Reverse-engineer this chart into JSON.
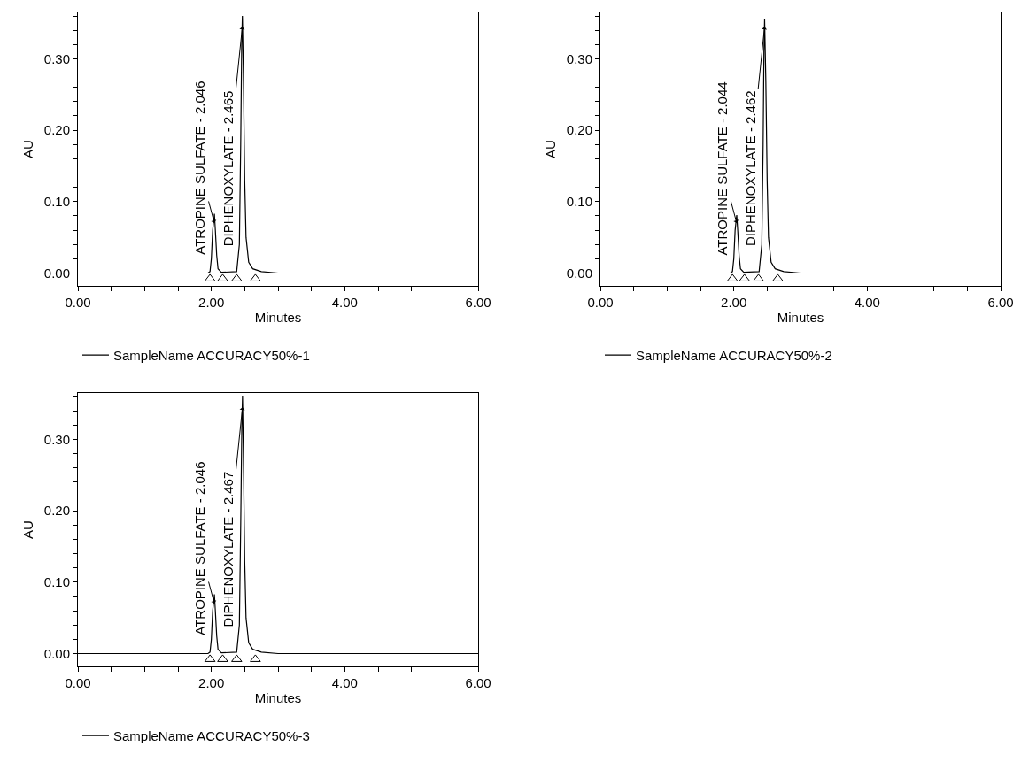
{
  "chart_data": [
    {
      "type": "line",
      "xlabel": "Minutes",
      "ylabel": "AU",
      "legend": "bottom",
      "grid": false,
      "line_style": "solid",
      "xlim": [
        0,
        6
      ],
      "ylim": [
        -0.018,
        0.365
      ],
      "xticks": [
        {
          "value": 0,
          "label": "0.00"
        },
        {
          "value": 0.5,
          "label": null
        },
        {
          "value": 1,
          "label": null
        },
        {
          "value": 1.5,
          "label": null
        },
        {
          "value": 2,
          "label": "2.00"
        },
        {
          "value": 2.5,
          "label": null
        },
        {
          "value": 3,
          "label": null
        },
        {
          "value": 3.5,
          "label": null
        },
        {
          "value": 4,
          "label": "4.00"
        },
        {
          "value": 4.5,
          "label": null
        },
        {
          "value": 5,
          "label": null
        },
        {
          "value": 5.5,
          "label": null
        },
        {
          "value": 6,
          "label": "6.00"
        }
      ],
      "yticks": [
        {
          "value": 0,
          "label": "0.00"
        },
        {
          "value": 0.02,
          "label": null
        },
        {
          "value": 0.04,
          "label": null
        },
        {
          "value": 0.06,
          "label": null
        },
        {
          "value": 0.08,
          "label": null
        },
        {
          "value": 0.1,
          "label": "0.10"
        },
        {
          "value": 0.12,
          "label": null
        },
        {
          "value": 0.14,
          "label": null
        },
        {
          "value": 0.16,
          "label": null
        },
        {
          "value": 0.18,
          "label": null
        },
        {
          "value": 0.2,
          "label": "0.20"
        },
        {
          "value": 0.22,
          "label": null
        },
        {
          "value": 0.24,
          "label": null
        },
        {
          "value": 0.26,
          "label": null
        },
        {
          "value": 0.28,
          "label": null
        },
        {
          "value": 0.3,
          "label": "0.30"
        },
        {
          "value": 0.32,
          "label": null
        },
        {
          "value": 0.34,
          "label": null
        },
        {
          "value": 0.36,
          "label": null
        }
      ],
      "series": [
        {
          "name": "SampleName ACCURACY50%-1",
          "color": "#000000",
          "x": [
            0,
            1.0,
            1.95,
            1.98,
            2.0,
            2.02,
            2.046,
            2.06,
            2.08,
            2.1,
            2.15,
            2.38,
            2.42,
            2.44,
            2.455,
            2.465,
            2.48,
            2.5,
            2.52,
            2.56,
            2.62,
            2.75,
            3.0,
            4.5,
            6.0
          ],
          "values": [
            0,
            0,
            0,
            0.002,
            0.02,
            0.06,
            0.083,
            0.06,
            0.025,
            0.006,
            0.001,
            0.002,
            0.04,
            0.18,
            0.32,
            0.36,
            0.28,
            0.13,
            0.05,
            0.015,
            0.006,
            0.002,
            0,
            0,
            0
          ]
        },
        {
          "type": "scatter",
          "marker": "triangle",
          "color": "#000000",
          "x": [
            1.98,
            2.17,
            2.38,
            2.66
          ],
          "values": [
            -0.008,
            -0.008,
            -0.008,
            -0.008
          ]
        }
      ],
      "annotations": [
        {
          "text": "ATROPINE SULFATE - 2.046",
          "x": 2.046,
          "y": 0.07
        },
        {
          "text": "DIPHENOXYLATE - 2.465",
          "x": 2.465,
          "y": 0.345
        }
      ]
    },
    {
      "type": "line",
      "xlabel": "Minutes",
      "ylabel": "AU",
      "legend": "bottom",
      "grid": false,
      "line_style": "solid",
      "xlim": [
        0,
        6
      ],
      "ylim": [
        -0.018,
        0.365
      ],
      "xticks": [
        {
          "value": 0,
          "label": "0.00"
        },
        {
          "value": 0.5,
          "label": null
        },
        {
          "value": 1,
          "label": null
        },
        {
          "value": 1.5,
          "label": null
        },
        {
          "value": 2,
          "label": "2.00"
        },
        {
          "value": 2.5,
          "label": null
        },
        {
          "value": 3,
          "label": null
        },
        {
          "value": 3.5,
          "label": null
        },
        {
          "value": 4,
          "label": "4.00"
        },
        {
          "value": 4.5,
          "label": null
        },
        {
          "value": 5,
          "label": null
        },
        {
          "value": 5.5,
          "label": null
        },
        {
          "value": 6,
          "label": "6.00"
        }
      ],
      "yticks": [
        {
          "value": 0,
          "label": "0.00"
        },
        {
          "value": 0.02,
          "label": null
        },
        {
          "value": 0.04,
          "label": null
        },
        {
          "value": 0.06,
          "label": null
        },
        {
          "value": 0.08,
          "label": null
        },
        {
          "value": 0.1,
          "label": "0.10"
        },
        {
          "value": 0.12,
          "label": null
        },
        {
          "value": 0.14,
          "label": null
        },
        {
          "value": 0.16,
          "label": null
        },
        {
          "value": 0.18,
          "label": null
        },
        {
          "value": 0.2,
          "label": "0.20"
        },
        {
          "value": 0.22,
          "label": null
        },
        {
          "value": 0.24,
          "label": null
        },
        {
          "value": 0.26,
          "label": null
        },
        {
          "value": 0.28,
          "label": null
        },
        {
          "value": 0.3,
          "label": "0.30"
        },
        {
          "value": 0.32,
          "label": null
        },
        {
          "value": 0.34,
          "label": null
        },
        {
          "value": 0.36,
          "label": null
        }
      ],
      "series": [
        {
          "name": "SampleName ACCURACY50%-2",
          "color": "#000000",
          "x": [
            0,
            1.0,
            1.95,
            1.98,
            2.0,
            2.02,
            2.044,
            2.06,
            2.08,
            2.1,
            2.15,
            2.38,
            2.42,
            2.44,
            2.452,
            2.462,
            2.48,
            2.5,
            2.52,
            2.56,
            2.62,
            2.75,
            3.0,
            4.5,
            6.0
          ],
          "values": [
            0,
            0,
            0,
            0.002,
            0.02,
            0.06,
            0.081,
            0.058,
            0.024,
            0.006,
            0.001,
            0.002,
            0.04,
            0.18,
            0.31,
            0.355,
            0.27,
            0.13,
            0.05,
            0.015,
            0.006,
            0.002,
            0,
            0,
            0
          ]
        },
        {
          "type": "scatter",
          "marker": "triangle",
          "color": "#000000",
          "x": [
            1.98,
            2.16,
            2.37,
            2.66
          ],
          "values": [
            -0.008,
            -0.008,
            -0.008,
            -0.008
          ]
        }
      ],
      "annotations": [
        {
          "text": "ATROPINE SULFATE - 2.044",
          "x": 2.044,
          "y": 0.07
        },
        {
          "text": "DIPHENOXYLATE - 2.462",
          "x": 2.462,
          "y": 0.345
        }
      ]
    },
    {
      "type": "line",
      "xlabel": "Minutes",
      "ylabel": "AU",
      "legend": "bottom",
      "grid": false,
      "line_style": "solid",
      "xlim": [
        0,
        6
      ],
      "ylim": [
        -0.018,
        0.365
      ],
      "xticks": [
        {
          "value": 0,
          "label": "0.00"
        },
        {
          "value": 0.5,
          "label": null
        },
        {
          "value": 1,
          "label": null
        },
        {
          "value": 1.5,
          "label": null
        },
        {
          "value": 2,
          "label": "2.00"
        },
        {
          "value": 2.5,
          "label": null
        },
        {
          "value": 3,
          "label": null
        },
        {
          "value": 3.5,
          "label": null
        },
        {
          "value": 4,
          "label": "4.00"
        },
        {
          "value": 4.5,
          "label": null
        },
        {
          "value": 5,
          "label": null
        },
        {
          "value": 5.5,
          "label": null
        },
        {
          "value": 6,
          "label": "6.00"
        }
      ],
      "yticks": [
        {
          "value": 0,
          "label": "0.00"
        },
        {
          "value": 0.02,
          "label": null
        },
        {
          "value": 0.04,
          "label": null
        },
        {
          "value": 0.06,
          "label": null
        },
        {
          "value": 0.08,
          "label": null
        },
        {
          "value": 0.1,
          "label": "0.10"
        },
        {
          "value": 0.12,
          "label": null
        },
        {
          "value": 0.14,
          "label": null
        },
        {
          "value": 0.16,
          "label": null
        },
        {
          "value": 0.18,
          "label": null
        },
        {
          "value": 0.2,
          "label": "0.20"
        },
        {
          "value": 0.22,
          "label": null
        },
        {
          "value": 0.24,
          "label": null
        },
        {
          "value": 0.26,
          "label": null
        },
        {
          "value": 0.28,
          "label": null
        },
        {
          "value": 0.3,
          "label": "0.30"
        },
        {
          "value": 0.32,
          "label": null
        },
        {
          "value": 0.34,
          "label": null
        },
        {
          "value": 0.36,
          "label": null
        }
      ],
      "series": [
        {
          "name": "SampleName ACCURACY50%-3",
          "color": "#000000",
          "x": [
            0,
            1.0,
            1.95,
            1.98,
            2.0,
            2.02,
            2.046,
            2.06,
            2.08,
            2.1,
            2.15,
            2.38,
            2.42,
            2.44,
            2.457,
            2.467,
            2.48,
            2.5,
            2.52,
            2.56,
            2.62,
            2.75,
            3.0,
            4.5,
            6.0
          ],
          "values": [
            0,
            0,
            0,
            0.002,
            0.02,
            0.06,
            0.083,
            0.06,
            0.025,
            0.006,
            0.001,
            0.002,
            0.04,
            0.18,
            0.32,
            0.36,
            0.28,
            0.13,
            0.05,
            0.015,
            0.006,
            0.002,
            0,
            0,
            0
          ]
        },
        {
          "type": "scatter",
          "marker": "triangle",
          "color": "#000000",
          "x": [
            1.98,
            2.17,
            2.38,
            2.66
          ],
          "values": [
            -0.008,
            -0.008,
            -0.008,
            -0.008
          ]
        }
      ],
      "annotations": [
        {
          "text": "ATROPINE SULFATE - 2.046",
          "x": 2.046,
          "y": 0.07
        },
        {
          "text": "DIPHENOXYLATE - 2.467",
          "x": 2.467,
          "y": 0.345
        }
      ]
    }
  ]
}
